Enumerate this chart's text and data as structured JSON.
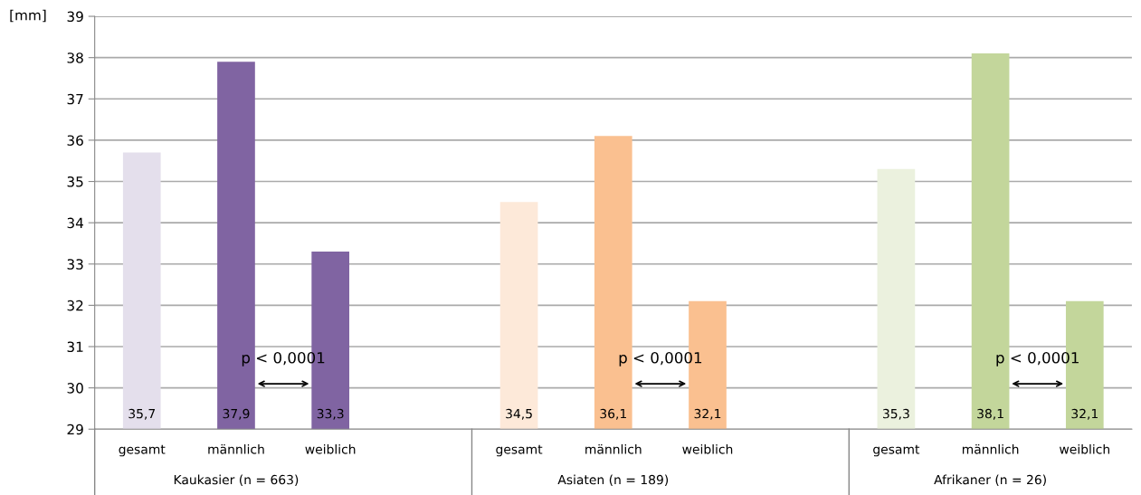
{
  "chart_data": {
    "type": "bar",
    "ylabel": "[mm]",
    "categories": [
      "gesamt",
      "männlich",
      "weiblich",
      null,
      "gesamt",
      "männlich",
      "weiblich",
      null,
      "gesamt",
      "männlich",
      "weiblich"
    ],
    "values": [
      35.7,
      37.9,
      33.3,
      null,
      34.5,
      36.1,
      32.1,
      null,
      35.3,
      38.1,
      32.1
    ],
    "colors": [
      "#e4dfec",
      "#8064a2",
      "#8064a2",
      "#ffffff",
      "#fde9d9",
      "#fac090",
      "#fac090",
      "#ffffff",
      "#ebf1de",
      "#c3d69b",
      "#c3d69b"
    ],
    "value_labels": [
      "35,7",
      "37,9",
      "33,3",
      null,
      "34,5",
      "36,1",
      "32,1",
      null,
      "35,3",
      "38,1",
      "32,1"
    ],
    "ylim": [
      29,
      39
    ],
    "yticks": [
      29,
      30,
      31,
      32,
      33,
      34,
      35,
      36,
      37,
      38,
      39
    ],
    "grid": "y",
    "annotations": [
      "Kaukasier (n = 663)",
      "Asiaten (n = 189)",
      "Afrikaner (n = 26)",
      "p < 0,0001",
      "p < 0,0001",
      "p < 0,0001"
    ]
  }
}
